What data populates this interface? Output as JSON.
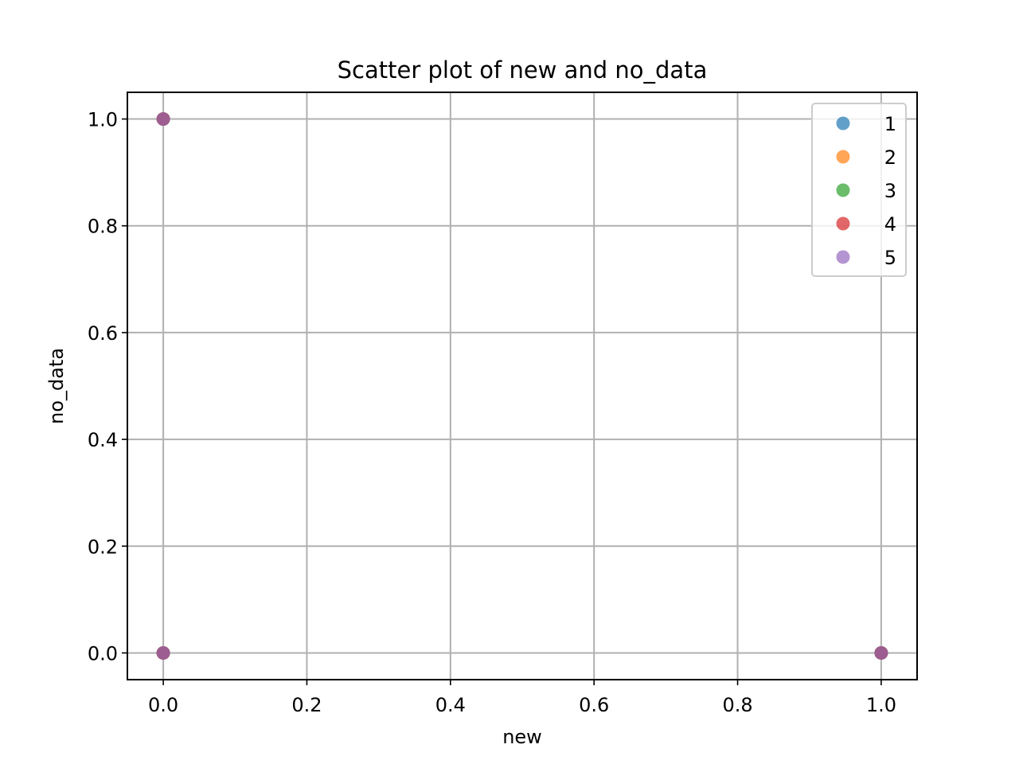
{
  "chart_data": {
    "type": "scatter",
    "title": "Scatter plot of new and no_data",
    "xlabel": "new",
    "ylabel": "no_data",
    "xlim": [
      -0.05,
      1.05
    ],
    "ylim": [
      -0.05,
      1.05
    ],
    "xticks": [
      0.0,
      0.2,
      0.4,
      0.6,
      0.8,
      1.0
    ],
    "yticks": [
      0.0,
      0.2,
      0.4,
      0.6,
      0.8,
      1.0
    ],
    "xtick_labels": [
      "0.0",
      "0.2",
      "0.4",
      "0.6",
      "0.8",
      "1.0"
    ],
    "ytick_labels": [
      "0.0",
      "0.2",
      "0.4",
      "0.6",
      "0.8",
      "1.0"
    ],
    "grid": true,
    "legend_position": "top-right",
    "series": [
      {
        "name": "1",
        "color": "#1f77b4",
        "points": [
          [
            0,
            1
          ],
          [
            0,
            0
          ],
          [
            1,
            0
          ]
        ]
      },
      {
        "name": "2",
        "color": "#ff7f0e",
        "points": [
          [
            0,
            1
          ],
          [
            0,
            0
          ],
          [
            1,
            0
          ]
        ]
      },
      {
        "name": "3",
        "color": "#2ca02c",
        "points": [
          [
            0,
            1
          ],
          [
            0,
            0
          ],
          [
            1,
            0
          ]
        ]
      },
      {
        "name": "4",
        "color": "#d62728",
        "points": [
          [
            0,
            1
          ],
          [
            0,
            0
          ],
          [
            1,
            0
          ]
        ]
      },
      {
        "name": "5",
        "color": "#9467bd",
        "points": [
          [
            0,
            1
          ],
          [
            0,
            0
          ],
          [
            1,
            0
          ]
        ]
      }
    ]
  }
}
